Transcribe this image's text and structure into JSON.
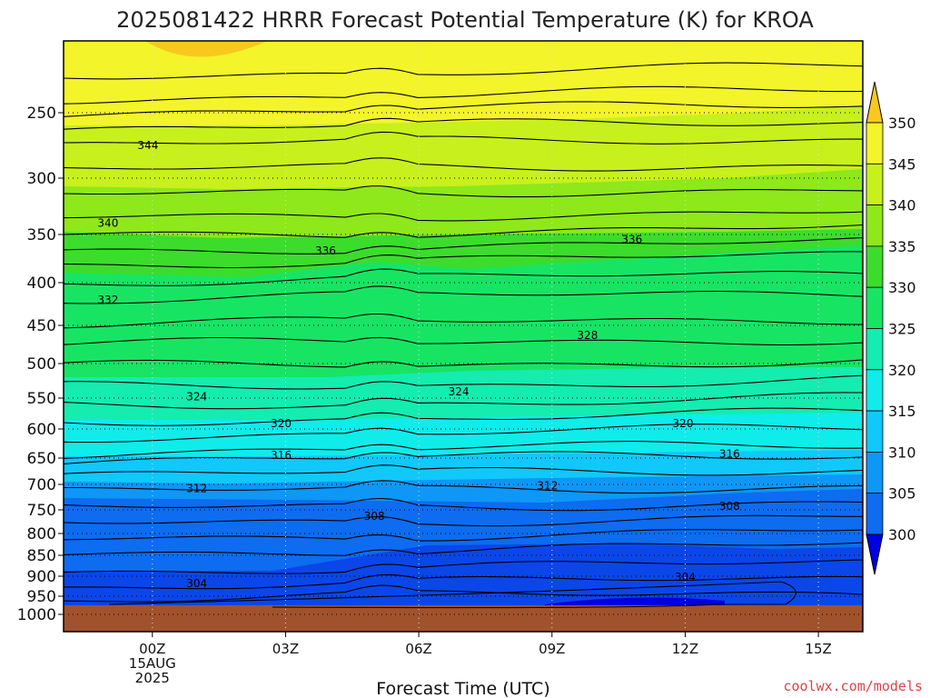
{
  "chart_data": {
    "type": "contour",
    "title": "2025081422 HRRR Forecast Potential Temperature (K) for KROA",
    "xlabel": "Forecast Time (UTC)",
    "ylabel": "",
    "x_ticks": [
      {
        "hour": 0,
        "label": "00Z",
        "sub": [
          "15AUG",
          "2025"
        ]
      },
      {
        "hour": 3,
        "label": "03Z"
      },
      {
        "hour": 6,
        "label": "06Z"
      },
      {
        "hour": 9,
        "label": "09Z"
      },
      {
        "hour": 12,
        "label": "12Z"
      },
      {
        "hour": 15,
        "label": "15Z"
      }
    ],
    "xlim": [
      -2,
      16
    ],
    "y_ticks": [
      250,
      300,
      350,
      400,
      450,
      500,
      550,
      600,
      650,
      700,
      750,
      800,
      850,
      900,
      950,
      1000
    ],
    "ylim_hpa": [
      200,
      1025
    ],
    "surface_hpa": 975,
    "contour_levels": [
      304,
      308,
      312,
      316,
      320,
      324,
      328,
      332,
      336,
      340,
      344
    ],
    "contour_labels": [
      {
        "value": "344",
        "x": -0.1,
        "p": 275
      },
      {
        "value": "340",
        "x": -1.0,
        "p": 340
      },
      {
        "value": "336",
        "x": 3.9,
        "p": 367
      },
      {
        "value": "336",
        "x": 10.8,
        "p": 355
      },
      {
        "value": "332",
        "x": -1.0,
        "p": 420
      },
      {
        "value": "328",
        "x": 9.8,
        "p": 463
      },
      {
        "value": "324",
        "x": 1.0,
        "p": 548
      },
      {
        "value": "324",
        "x": 6.9,
        "p": 541
      },
      {
        "value": "320",
        "x": 2.9,
        "p": 591
      },
      {
        "value": "320",
        "x": 11.95,
        "p": 591
      },
      {
        "value": "316",
        "x": 2.9,
        "p": 645
      },
      {
        "value": "316",
        "x": 13.0,
        "p": 643
      },
      {
        "value": "312",
        "x": 1.0,
        "p": 708
      },
      {
        "value": "312",
        "x": 8.9,
        "p": 703
      },
      {
        "value": "308",
        "x": 5.0,
        "p": 763
      },
      {
        "value": "308",
        "x": 13.0,
        "p": 743
      },
      {
        "value": "304",
        "x": 1.0,
        "p": 918
      },
      {
        "value": "304",
        "x": 12.0,
        "p": 902
      }
    ],
    "colorbar": {
      "labels": [
        "300",
        "305",
        "310",
        "315",
        "320",
        "325",
        "330",
        "335",
        "340",
        "345",
        "350"
      ],
      "colors": [
        "#0000e0",
        "#0b46e8",
        "#0d6cf0",
        "#0e97f6",
        "#10c8fa",
        "#10ecea",
        "#14ecb0",
        "#18e464",
        "#3cdc2c",
        "#8ee81a",
        "#c8f01c",
        "#f4f42a",
        "#f8c81e"
      ]
    },
    "grid": true,
    "credit": "coolwx.com/models"
  }
}
